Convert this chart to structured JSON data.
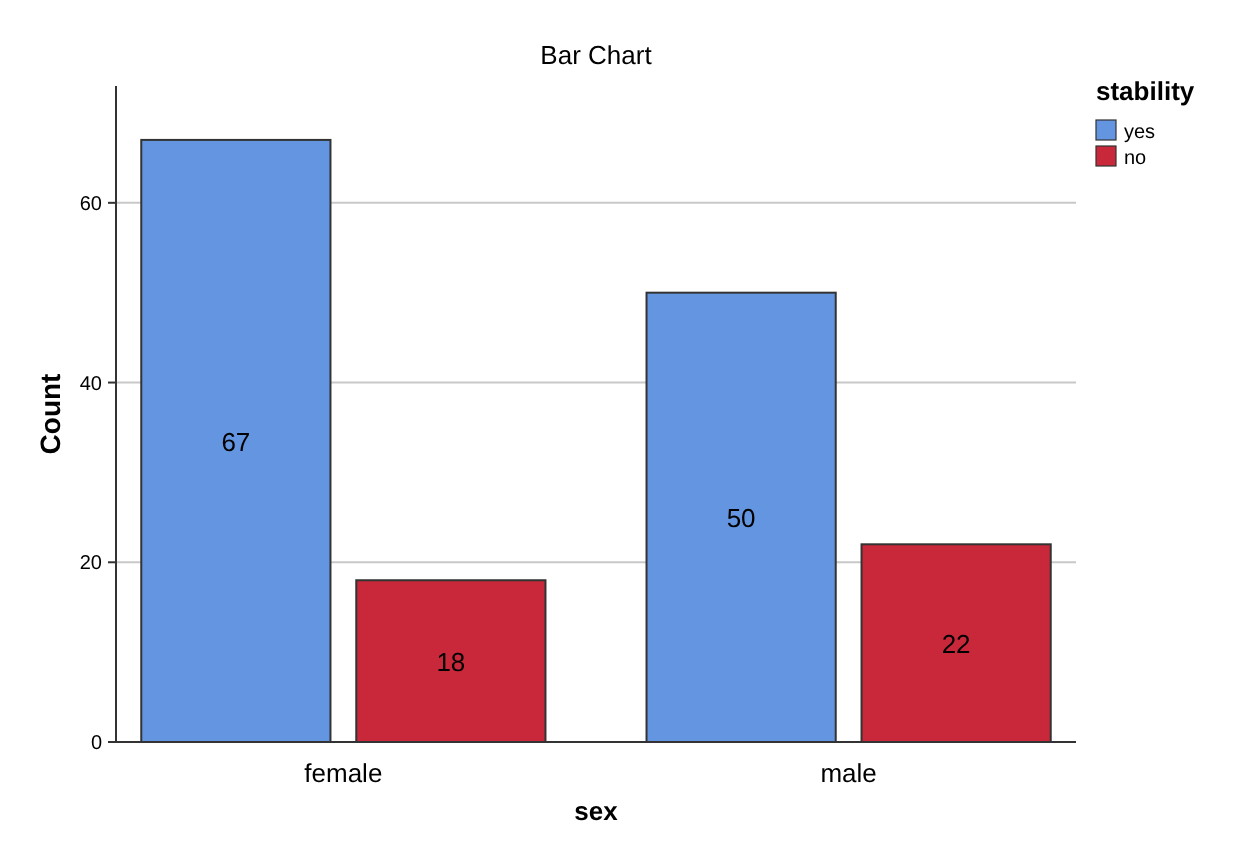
{
  "chart_data": {
    "type": "bar",
    "title": "Bar Chart",
    "xlabel": "sex",
    "ylabel": "Count",
    "legend_title": "stability",
    "categories": [
      "female",
      "male"
    ],
    "series": [
      {
        "name": "yes",
        "color": "#6495e0",
        "values": [
          67,
          50
        ]
      },
      {
        "name": "no",
        "color": "#c8283a",
        "values": [
          18,
          22
        ]
      }
    ],
    "ylim": [
      0,
      73
    ],
    "yticks": [
      0,
      20,
      40,
      60
    ],
    "grid": "y",
    "legend": "top right",
    "data_labels": true
  }
}
